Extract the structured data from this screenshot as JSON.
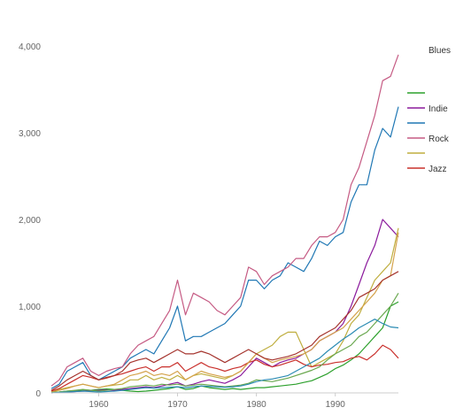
{
  "chart_data": {
    "type": "line",
    "title": "",
    "xlabel": "",
    "ylabel": "",
    "xlim": [
      1954,
      1998
    ],
    "ylim": [
      0,
      4000
    ],
    "x_ticks": [
      1960,
      1970,
      1980,
      1990
    ],
    "x_tick_labels": [
      "1960",
      "1970",
      "1980",
      "1990"
    ],
    "y_ticks": [
      0,
      1000,
      2000,
      3000,
      4000
    ],
    "y_tick_labels": [
      "0",
      "1,000",
      "2,000",
      "3,000",
      "4,000"
    ],
    "grid": false,
    "legend_position": "right",
    "legend_heading": "Blues",
    "x": [
      1954,
      1955,
      1956,
      1957,
      1958,
      1959,
      1960,
      1961,
      1962,
      1963,
      1964,
      1965,
      1966,
      1967,
      1968,
      1969,
      1970,
      1971,
      1972,
      1973,
      1974,
      1975,
      1976,
      1977,
      1978,
      1979,
      1980,
      1981,
      1982,
      1983,
      1984,
      1985,
      1986,
      1987,
      1988,
      1989,
      1990,
      1991,
      1992,
      1993,
      1994,
      1995,
      1996,
      1997,
      1998
    ],
    "series": [
      {
        "name": "",
        "color": "#2ca02c",
        "values": [
          5,
          10,
          20,
          25,
          35,
          30,
          40,
          45,
          40,
          30,
          20,
          15,
          20,
          30,
          40,
          50,
          70,
          40,
          50,
          80,
          60,
          50,
          40,
          50,
          40,
          50,
          60,
          60,
          70,
          80,
          90,
          100,
          120,
          140,
          180,
          220,
          280,
          320,
          380,
          450,
          550,
          650,
          750,
          1000,
          1050
        ]
      },
      {
        "name": "Indie",
        "color": "#8b1a9c",
        "values": [
          0,
          5,
          10,
          15,
          20,
          25,
          30,
          35,
          30,
          40,
          50,
          60,
          70,
          60,
          80,
          100,
          120,
          80,
          100,
          130,
          150,
          130,
          110,
          150,
          200,
          300,
          400,
          350,
          300,
          350,
          380,
          400,
          450,
          500,
          600,
          650,
          700,
          800,
          1000,
          1250,
          1500,
          1700,
          2000,
          1900,
          1800
        ]
      },
      {
        "name": "",
        "color": "#1f77b4",
        "values": [
          50,
          100,
          250,
          300,
          350,
          200,
          150,
          200,
          250,
          300,
          400,
          450,
          500,
          450,
          600,
          750,
          1000,
          600,
          650,
          650,
          700,
          750,
          800,
          900,
          1000,
          1300,
          1300,
          1200,
          1300,
          1350,
          1500,
          1450,
          1400,
          1550,
          1750,
          1700,
          1800,
          1850,
          2200,
          2400,
          2400,
          2800,
          3050,
          2950,
          3300
        ]
      },
      {
        "name": "Rock",
        "color": "#c55a83",
        "values": [
          80,
          150,
          300,
          350,
          400,
          250,
          200,
          250,
          280,
          300,
          450,
          550,
          600,
          650,
          800,
          950,
          1300,
          900,
          1150,
          1100,
          1050,
          950,
          900,
          1000,
          1100,
          1450,
          1400,
          1250,
          1350,
          1400,
          1450,
          1550,
          1550,
          1700,
          1800,
          1800,
          1850,
          2000,
          2400,
          2600,
          2900,
          3200,
          3600,
          3650,
          3900
        ]
      },
      {
        "name": "",
        "color": "#bfae3f",
        "values": [
          20,
          40,
          60,
          80,
          100,
          80,
          60,
          80,
          90,
          100,
          150,
          150,
          200,
          150,
          180,
          150,
          200,
          150,
          200,
          220,
          200,
          180,
          160,
          200,
          250,
          350,
          450,
          500,
          550,
          650,
          700,
          700,
          500,
          300,
          350,
          400,
          450,
          600,
          800,
          900,
          1100,
          1300,
          1400,
          1500,
          1900
        ]
      },
      {
        "name": "Jazz",
        "color": "#c9302c",
        "values": [
          20,
          50,
          100,
          150,
          200,
          180,
          150,
          170,
          200,
          220,
          250,
          280,
          300,
          250,
          300,
          300,
          350,
          250,
          300,
          350,
          300,
          280,
          250,
          280,
          300,
          350,
          380,
          330,
          300,
          320,
          350,
          380,
          330,
          300,
          320,
          330,
          350,
          360,
          400,
          420,
          380,
          450,
          550,
          500,
          400
        ]
      },
      {
        "name": "",
        "color": "#d4a24a",
        "values": [
          10,
          30,
          50,
          80,
          100,
          80,
          60,
          80,
          100,
          150,
          200,
          220,
          250,
          200,
          220,
          200,
          250,
          150,
          200,
          250,
          220,
          200,
          180,
          200,
          250,
          350,
          450,
          400,
          350,
          380,
          400,
          420,
          450,
          500,
          600,
          650,
          700,
          750,
          850,
          950,
          1050,
          1150,
          1300,
          1350,
          1850
        ]
      },
      {
        "name": "",
        "color": "#a5342e",
        "values": [
          30,
          80,
          150,
          200,
          250,
          200,
          150,
          180,
          200,
          250,
          350,
          380,
          400,
          350,
          400,
          450,
          500,
          450,
          450,
          480,
          450,
          400,
          350,
          400,
          450,
          500,
          450,
          400,
          380,
          400,
          420,
          450,
          500,
          550,
          650,
          700,
          750,
          850,
          950,
          1100,
          1150,
          1200,
          1300,
          1350,
          1400
        ]
      },
      {
        "name": "",
        "color": "#6aa84f",
        "values": [
          5,
          10,
          20,
          30,
          40,
          30,
          20,
          30,
          40,
          50,
          70,
          80,
          90,
          80,
          100,
          90,
          100,
          80,
          90,
          100,
          90,
          80,
          70,
          80,
          90,
          110,
          150,
          140,
          130,
          150,
          170,
          200,
          230,
          260,
          300,
          380,
          450,
          500,
          550,
          650,
          700,
          800,
          900,
          1000,
          1150
        ]
      },
      {
        "name": "",
        "color": "#2b8bb3",
        "values": [
          0,
          5,
          10,
          15,
          20,
          15,
          10,
          15,
          20,
          30,
          40,
          50,
          60,
          55,
          60,
          65,
          70,
          60,
          70,
          80,
          75,
          70,
          65,
          70,
          80,
          100,
          130,
          150,
          160,
          180,
          200,
          250,
          300,
          350,
          400,
          480,
          550,
          620,
          680,
          750,
          800,
          850,
          800,
          760,
          750
        ]
      }
    ]
  }
}
